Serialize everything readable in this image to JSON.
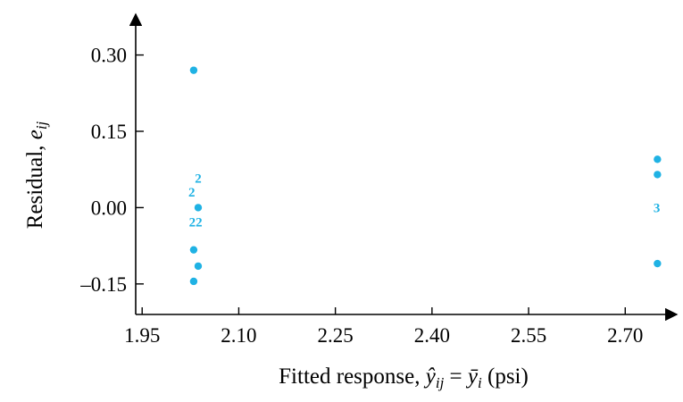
{
  "chart_data": {
    "type": "scatter",
    "title": "",
    "xlabel": "Fitted response, ŷij = ȳi (psi)",
    "ylabel": "Residual, eij",
    "xlim": [
      1.94,
      2.78
    ],
    "ylim": [
      -0.21,
      0.38
    ],
    "x_ticks": [
      "1.95",
      "2.10",
      "2.25",
      "2.40",
      "2.55",
      "2.70"
    ],
    "y_ticks": [
      "0.30",
      "0.15",
      "0.00",
      "–0.15"
    ],
    "grid": false,
    "points": [
      {
        "x": 2.03,
        "y": 0.27
      },
      {
        "x": 2.03,
        "y": -0.083
      },
      {
        "x": 2.03,
        "y": -0.145
      },
      {
        "x": 2.037,
        "y": 0.0
      },
      {
        "x": 2.037,
        "y": -0.115
      },
      {
        "x": 2.75,
        "y": 0.095
      },
      {
        "x": 2.75,
        "y": 0.065
      },
      {
        "x": 2.75,
        "y": -0.11
      }
    ],
    "annotations": [
      {
        "text": "2",
        "x": 2.037,
        "y": 0.058
      },
      {
        "text": "2",
        "x": 2.027,
        "y": 0.031
      },
      {
        "text": "22",
        "x": 2.033,
        "y": -0.028
      },
      {
        "text": "3",
        "x": 2.749,
        "y": 0.0
      }
    ],
    "colors": {
      "marker": "#1fb2e4",
      "axis": "#000000"
    }
  }
}
